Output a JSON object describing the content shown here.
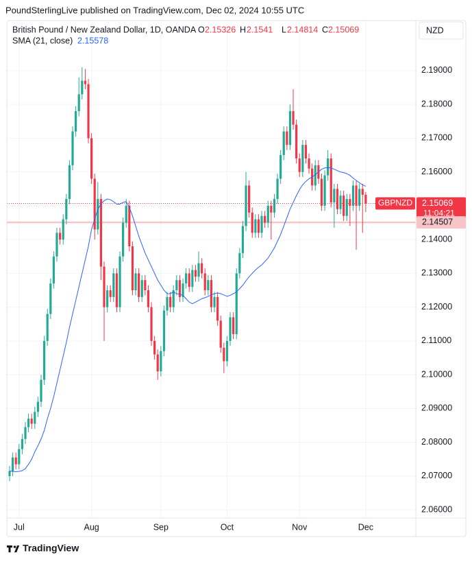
{
  "header": {
    "publisher": "PoundSterlingLive published on TradingView.com, Dec 02, 2024 10:55 UTC"
  },
  "footer": {
    "brand": "TradingView"
  },
  "chart_data": {
    "type": "candlestick",
    "title": "British Pound / New Zealand Dollar, 1D, OANDA",
    "ohlc_labels": [
      "O",
      "H",
      "L",
      "C"
    ],
    "currency": "NZD",
    "symbol": "GBPNZD",
    "countdown": "11:04:21",
    "up_color": "#22ab94",
    "down_color": "#f23645",
    "open": [
      2.07,
      2.0715,
      2.0755,
      2.0735,
      2.078,
      2.081,
      2.0845,
      2.087,
      2.0855,
      2.089,
      2.092,
      2.0985,
      2.11,
      2.118,
      2.127,
      2.135,
      2.142,
      2.14,
      2.146,
      2.152,
      2.162,
      2.172,
      2.178,
      2.183,
      2.187,
      2.186,
      2.17,
      2.158,
      2.143,
      2.152,
      2.132,
      2.12,
      2.125,
      2.123,
      2.13,
      2.12,
      2.135,
      2.145,
      2.15,
      2.138,
      2.125,
      2.13,
      2.123,
      2.128,
      2.125,
      2.12,
      2.11,
      2.106,
      2.101,
      2.107,
      2.119,
      2.123,
      2.12,
      2.125,
      2.128,
      2.123,
      2.127,
      2.13,
      2.126,
      2.131,
      2.129,
      2.133,
      2.13,
      2.125,
      2.128,
      2.12,
      2.123,
      2.116,
      2.108,
      2.104,
      2.11,
      2.117,
      2.112,
      2.13,
      2.136,
      2.144,
      2.156,
      2.148,
      2.142,
      2.146,
      2.142,
      2.147,
      2.145,
      2.15,
      2.148,
      2.152,
      2.158,
      2.165,
      2.172,
      2.168,
      2.178,
      2.174,
      2.164,
      2.16,
      2.168,
      2.164,
      2.161,
      2.156,
      2.162,
      2.158,
      2.15,
      2.159,
      2.164,
      2.151,
      2.155,
      2.149,
      2.153,
      2.147,
      2.152,
      2.15,
      2.156,
      2.15,
      2.155,
      2.15326
    ],
    "high": [
      2.073,
      2.077,
      2.077,
      2.0795,
      2.0825,
      2.086,
      2.0885,
      2.0885,
      2.0905,
      2.0935,
      2.1,
      2.1115,
      2.1195,
      2.1285,
      2.1365,
      2.1435,
      2.1435,
      2.1475,
      2.1535,
      2.1635,
      2.1735,
      2.1795,
      2.188,
      2.191,
      2.1905,
      2.1875,
      2.1715,
      2.1595,
      2.157,
      2.1535,
      2.1335,
      2.1265,
      2.1265,
      2.1315,
      2.1315,
      2.1365,
      2.1465,
      2.152,
      2.1515,
      2.1395,
      2.1315,
      2.1315,
      2.1295,
      2.1295,
      2.1265,
      2.1215,
      2.1115,
      2.1075,
      2.1085,
      2.1205,
      2.1245,
      2.1245,
      2.1265,
      2.1295,
      2.1295,
      2.1285,
      2.1315,
      2.1315,
      2.1325,
      2.1325,
      2.1365,
      2.1345,
      2.1315,
      2.1295,
      2.1295,
      2.1245,
      2.1245,
      2.1175,
      2.1095,
      2.1115,
      2.1185,
      2.1185,
      2.1315,
      2.1375,
      2.1455,
      2.16,
      2.1575,
      2.1495,
      2.1475,
      2.1475,
      2.1485,
      2.1485,
      2.1515,
      2.1515,
      2.1535,
      2.1595,
      2.1665,
      2.1735,
      2.1735,
      2.18,
      2.1845,
      2.1755,
      2.1655,
      2.1695,
      2.1695,
      2.1655,
      2.1625,
      2.1635,
      2.1635,
      2.1595,
      2.1605,
      2.1665,
      2.1655,
      2.1565,
      2.1565,
      2.1545,
      2.1545,
      2.1535,
      2.1535,
      2.1575,
      2.1575,
      2.1565,
      2.1565,
      2.1541
    ],
    "low": [
      2.0685,
      2.07,
      2.072,
      2.072,
      2.0765,
      2.0795,
      2.083,
      2.084,
      2.084,
      2.0875,
      2.0905,
      2.097,
      2.1085,
      2.1165,
      2.1255,
      2.1335,
      2.1385,
      2.1385,
      2.1445,
      2.1505,
      2.1605,
      2.1705,
      2.1765,
      2.1815,
      2.1845,
      2.1685,
      2.1565,
      2.14,
      2.1415,
      2.128,
      2.11,
      2.1185,
      2.1215,
      2.1215,
      2.1185,
      2.1185,
      2.1335,
      2.1435,
      2.1365,
      2.1235,
      2.1235,
      2.1215,
      2.1215,
      2.1235,
      2.1185,
      2.1085,
      2.1045,
      2.0985,
      2.0995,
      2.1055,
      2.1175,
      2.1185,
      2.1185,
      2.1235,
      2.1215,
      2.1215,
      2.1255,
      2.1245,
      2.1245,
      2.1275,
      2.1275,
      2.1285,
      2.1235,
      2.1235,
      2.1185,
      2.1185,
      2.1145,
      2.1065,
      2.1005,
      2.1025,
      2.1085,
      2.1105,
      2.1105,
      2.1285,
      2.1345,
      2.1425,
      2.1465,
      2.1405,
      2.1405,
      2.1405,
      2.1405,
      2.1435,
      2.1435,
      2.14,
      2.1465,
      2.1505,
      2.1565,
      2.1635,
      2.1665,
      2.1665,
      2.1725,
      2.1625,
      2.1585,
      2.1585,
      2.1625,
      2.1595,
      2.1545,
      2.1545,
      2.1565,
      2.1485,
      2.1485,
      2.1575,
      2.1495,
      2.1435,
      2.1475,
      2.1475,
      2.1455,
      2.1455,
      2.144,
      2.1485,
      2.137,
      2.1485,
      2.142,
      2.14814
    ],
    "close": [
      2.0715,
      2.0755,
      2.0735,
      2.078,
      2.081,
      2.0845,
      2.087,
      2.0855,
      2.089,
      2.092,
      2.0985,
      2.11,
      2.118,
      2.127,
      2.135,
      2.142,
      2.14,
      2.146,
      2.152,
      2.162,
      2.172,
      2.178,
      2.183,
      2.187,
      2.186,
      2.17,
      2.158,
      2.143,
      2.152,
      2.132,
      2.12,
      2.125,
      2.123,
      2.13,
      2.12,
      2.135,
      2.145,
      2.15,
      2.138,
      2.125,
      2.13,
      2.123,
      2.128,
      2.125,
      2.12,
      2.11,
      2.106,
      2.101,
      2.107,
      2.119,
      2.123,
      2.12,
      2.125,
      2.128,
      2.123,
      2.127,
      2.13,
      2.126,
      2.131,
      2.129,
      2.133,
      2.13,
      2.125,
      2.128,
      2.12,
      2.123,
      2.116,
      2.108,
      2.104,
      2.11,
      2.117,
      2.112,
      2.13,
      2.136,
      2.144,
      2.156,
      2.148,
      2.142,
      2.146,
      2.142,
      2.147,
      2.145,
      2.15,
      2.148,
      2.152,
      2.158,
      2.165,
      2.172,
      2.168,
      2.178,
      2.174,
      2.164,
      2.16,
      2.168,
      2.164,
      2.161,
      2.156,
      2.162,
      2.158,
      2.15,
      2.159,
      2.164,
      2.151,
      2.155,
      2.149,
      2.153,
      2.147,
      2.152,
      2.15,
      2.156,
      2.15,
      2.155,
      2.15326,
      2.15069
    ],
    "series": [
      {
        "name": "SMA (21, close)",
        "color": "#2962ff",
        "values": [
          2.0715,
          2.0714,
          2.0713,
          2.0714,
          2.0716,
          2.0722,
          2.0735,
          2.075,
          2.0772,
          2.079,
          2.081,
          2.0835,
          2.087,
          2.09,
          2.0935,
          2.0975,
          2.1015,
          2.1055,
          2.1095,
          2.114,
          2.118,
          2.122,
          2.126,
          2.13,
          2.134,
          2.138,
          2.143,
          2.146,
          2.149,
          2.1505,
          2.1515,
          2.152,
          2.1518,
          2.1512,
          2.1505,
          2.1505,
          2.151,
          2.1512,
          2.1495,
          2.147,
          2.144,
          2.141,
          2.1385,
          2.136,
          2.134,
          2.132,
          2.13,
          2.128,
          2.1265,
          2.125,
          2.124,
          2.124,
          2.1245,
          2.124,
          2.1238,
          2.1235,
          2.1225,
          2.1215,
          2.121,
          2.1215,
          2.122,
          2.1225,
          2.1228,
          2.1232,
          2.1236,
          2.124,
          2.1242,
          2.124,
          2.1236,
          2.1232,
          2.1235,
          2.124,
          2.1245,
          2.1255,
          2.1265,
          2.1278,
          2.129,
          2.13,
          2.131,
          2.1318,
          2.1325,
          2.1335,
          2.1345,
          2.136,
          2.1375,
          2.1395,
          2.1415,
          2.144,
          2.1465,
          2.149,
          2.151,
          2.153,
          2.1548,
          2.1562,
          2.1572,
          2.158,
          2.1585,
          2.1592,
          2.16,
          2.1608,
          2.1612,
          2.1613,
          2.1612,
          2.1608,
          2.1604,
          2.16,
          2.1598,
          2.1595,
          2.159,
          2.1582,
          2.1575,
          2.1568,
          2.1562,
          2.15578
        ]
      }
    ],
    "level": 2.14507,
    "level_color": "#f7c5c8",
    "xlim": [
      -0.87,
      128.9
    ],
    "xticks": [
      {
        "value": 3,
        "label": "Jul"
      },
      {
        "value": 26,
        "label": "Aug"
      },
      {
        "value": 48,
        "label": "Sep"
      },
      {
        "value": 69,
        "label": "Oct"
      },
      {
        "value": 92,
        "label": "Nov"
      },
      {
        "value": 113,
        "label": "Dec"
      }
    ],
    "ylim": [
      2.0576,
      2.2048
    ],
    "yticks": [
      {
        "value": 2.06,
        "label": "2.06000"
      },
      {
        "value": 2.07,
        "label": "2.07000"
      },
      {
        "value": 2.08,
        "label": "2.08000"
      },
      {
        "value": 2.09,
        "label": "2.09000"
      },
      {
        "value": 2.1,
        "label": "2.10000"
      },
      {
        "value": 2.11,
        "label": "2.11000"
      },
      {
        "value": 2.12,
        "label": "2.12000"
      },
      {
        "value": 2.13,
        "label": "2.13000"
      },
      {
        "value": 2.14,
        "label": "2.14000"
      },
      {
        "value": 2.15,
        "label": "2.15000"
      },
      {
        "value": 2.16,
        "label": "2.16000"
      },
      {
        "value": 2.17,
        "label": "2.17000"
      },
      {
        "value": 2.18,
        "label": "2.18000"
      },
      {
        "value": 2.19,
        "label": "2.19000"
      }
    ],
    "grid": true
  }
}
